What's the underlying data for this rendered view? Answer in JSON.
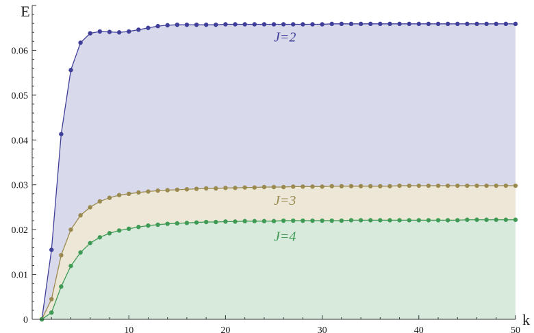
{
  "chart_data": {
    "type": "area",
    "xlabel": "k",
    "ylabel": "E",
    "xlim": [
      0,
      50
    ],
    "ylim": [
      0,
      0.07
    ],
    "x_ticks": [
      10,
      20,
      30,
      40,
      50
    ],
    "y_ticks": [
      0,
      0.01,
      0.02,
      0.03,
      0.04,
      0.05,
      0.06
    ],
    "y_tick_labels": [
      "0",
      "0.01",
      "0.02",
      "0.03",
      "0.04",
      "0.05",
      "0.06"
    ],
    "grid": false,
    "series": [
      {
        "name": "J=2",
        "color": "#3f3f9a",
        "fill": "#d9d9ec",
        "x": [
          1,
          2,
          3,
          4,
          5,
          6,
          7,
          8,
          9,
          10,
          11,
          12,
          13,
          14,
          15,
          16,
          17,
          18,
          19,
          20,
          21,
          22,
          23,
          24,
          25,
          26,
          27,
          28,
          29,
          30,
          31,
          32,
          33,
          34,
          35,
          36,
          37,
          38,
          39,
          40,
          41,
          42,
          43,
          44,
          45,
          46,
          47,
          48,
          49,
          50
        ],
        "y": [
          0,
          0.0155,
          0.0413,
          0.0556,
          0.0617,
          0.0638,
          0.0642,
          0.0641,
          0.064,
          0.0642,
          0.0646,
          0.065,
          0.0654,
          0.0656,
          0.0657,
          0.0657,
          0.0657,
          0.0657,
          0.0657,
          0.0658,
          0.0658,
          0.0658,
          0.0658,
          0.0658,
          0.0658,
          0.0658,
          0.0658,
          0.0658,
          0.0658,
          0.0658,
          0.0659,
          0.0659,
          0.0659,
          0.0659,
          0.0659,
          0.0659,
          0.0659,
          0.0659,
          0.0659,
          0.0659,
          0.0659,
          0.0659,
          0.0659,
          0.0659,
          0.0659,
          0.0659,
          0.0659,
          0.0659,
          0.0659,
          0.0659
        ]
      },
      {
        "name": "J=3",
        "color": "#9a8a4f",
        "fill": "#ece7d6",
        "x": [
          1,
          2,
          3,
          4,
          5,
          6,
          7,
          8,
          9,
          10,
          11,
          12,
          13,
          14,
          15,
          16,
          17,
          18,
          19,
          20,
          21,
          22,
          23,
          24,
          25,
          26,
          27,
          28,
          29,
          30,
          31,
          32,
          33,
          34,
          35,
          36,
          37,
          38,
          39,
          40,
          41,
          42,
          43,
          44,
          45,
          46,
          47,
          48,
          49,
          50
        ],
        "y": [
          0,
          0.0045,
          0.0143,
          0.02,
          0.0232,
          0.025,
          0.0263,
          0.0271,
          0.0277,
          0.028,
          0.0283,
          0.0285,
          0.0287,
          0.0288,
          0.0289,
          0.029,
          0.0291,
          0.0292,
          0.0292,
          0.0293,
          0.0293,
          0.0294,
          0.0294,
          0.0295,
          0.0295,
          0.0295,
          0.0296,
          0.0296,
          0.0296,
          0.0296,
          0.0297,
          0.0297,
          0.0297,
          0.0297,
          0.0297,
          0.0297,
          0.0297,
          0.0298,
          0.0298,
          0.0298,
          0.0298,
          0.0298,
          0.0298,
          0.0298,
          0.0298,
          0.0298,
          0.0298,
          0.0298,
          0.0298,
          0.0298
        ]
      },
      {
        "name": "J=4",
        "color": "#3f9a55",
        "fill": "#d7eadc",
        "x": [
          1,
          2,
          3,
          4,
          5,
          6,
          7,
          8,
          9,
          10,
          11,
          12,
          13,
          14,
          15,
          16,
          17,
          18,
          19,
          20,
          21,
          22,
          23,
          24,
          25,
          26,
          27,
          28,
          29,
          30,
          31,
          32,
          33,
          34,
          35,
          36,
          37,
          38,
          39,
          40,
          41,
          42,
          43,
          44,
          45,
          46,
          47,
          48,
          49,
          50
        ],
        "y": [
          0,
          0.0015,
          0.0073,
          0.0119,
          0.0149,
          0.017,
          0.0183,
          0.0192,
          0.0198,
          0.0202,
          0.0206,
          0.0209,
          0.0211,
          0.0213,
          0.0214,
          0.0215,
          0.0216,
          0.0217,
          0.0217,
          0.0218,
          0.0218,
          0.0219,
          0.0219,
          0.0219,
          0.0219,
          0.022,
          0.022,
          0.022,
          0.022,
          0.022,
          0.022,
          0.022,
          0.0221,
          0.0221,
          0.0221,
          0.0221,
          0.0221,
          0.0221,
          0.0221,
          0.0221,
          0.0221,
          0.0221,
          0.0221,
          0.0221,
          0.0222,
          0.0222,
          0.0222,
          0.0222,
          0.0222,
          0.0222
        ]
      }
    ],
    "annotations": [
      {
        "text": "J=2",
        "series": "J=2",
        "x": 25,
        "y": 0.062
      },
      {
        "text": "J=3",
        "series": "J=3",
        "x": 25,
        "y": 0.0255
      },
      {
        "text": "J=4",
        "series": "J=4",
        "x": 25,
        "y": 0.0175
      }
    ]
  }
}
